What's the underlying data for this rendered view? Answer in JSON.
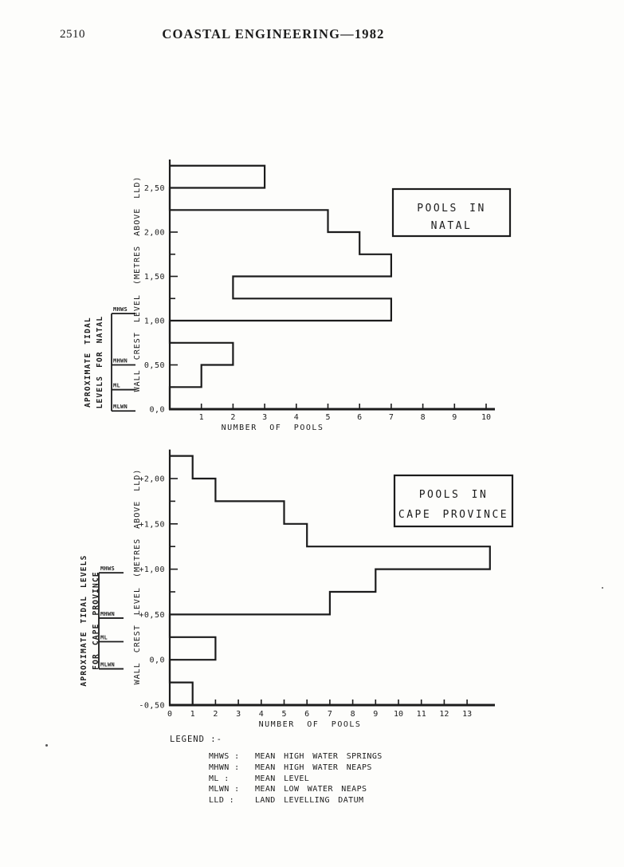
{
  "page": {
    "number": "2510",
    "title": "COASTAL ENGINEERING—1982"
  },
  "colors": {
    "ink": "#1c1c1c",
    "paper": "#fdfdfb"
  },
  "legend": {
    "title": "LEGEND :-",
    "entries": [
      {
        "abbr": "MHWS :",
        "definition": "MEAN HIGH WATER SPRINGS"
      },
      {
        "abbr": "MHWN :",
        "definition": "MEAN HIGH WATER NEAPS"
      },
      {
        "abbr": "ML :",
        "definition": "MEAN LEVEL"
      },
      {
        "abbr": "MLWN :",
        "definition": "MEAN LOW WATER NEAPS"
      },
      {
        "abbr": "LLD :",
        "definition": "LAND LEVELLING DATUM"
      }
    ]
  },
  "chart_data": [
    {
      "type": "bar",
      "orientation": "horizontal-step-histogram",
      "title_lines": [
        "POOLS IN",
        "NATAL"
      ],
      "xlabel": "NUMBER OF POOLS",
      "ylabel": "WALL CREST LEVEL (METRES ABOVE LLD)",
      "xlim": [
        0,
        10.3
      ],
      "x_ticks": [
        1,
        2,
        3,
        4,
        5,
        6,
        7,
        8,
        9,
        10
      ],
      "ylim": [
        0,
        2.82
      ],
      "y_minor_step": 0.25,
      "y_major_ticks": [
        {
          "value": 0.0,
          "label": "0,0"
        },
        {
          "value": 0.5,
          "label": "0,50"
        },
        {
          "value": 1.0,
          "label": "1,00"
        },
        {
          "value": 1.5,
          "label": "1,50"
        },
        {
          "value": 2.0,
          "label": "2,00"
        },
        {
          "value": 2.5,
          "label": "2,50"
        }
      ],
      "bins": [
        {
          "from": 2.5,
          "to": 2.75,
          "count": 3
        },
        {
          "from": 2.25,
          "to": 2.5,
          "count": 0
        },
        {
          "from": 2.0,
          "to": 2.25,
          "count": 5
        },
        {
          "from": 1.75,
          "to": 2.0,
          "count": 6
        },
        {
          "from": 1.5,
          "to": 1.75,
          "count": 7
        },
        {
          "from": 1.25,
          "to": 1.5,
          "count": 2
        },
        {
          "from": 1.0,
          "to": 1.25,
          "count": 7
        },
        {
          "from": 0.75,
          "to": 1.0,
          "count": 0
        },
        {
          "from": 0.5,
          "to": 0.75,
          "count": 2
        },
        {
          "from": 0.25,
          "to": 0.5,
          "count": 1
        },
        {
          "from": 0.0,
          "to": 0.25,
          "count": 0
        }
      ],
      "tidal_scale": {
        "caption_lines": [
          "APROXIMATE TIDAL",
          "LEVELS FOR NATAL"
        ],
        "marks": [
          {
            "label": "MHWS",
            "level": 1.08
          },
          {
            "label": "MHWN",
            "level": 0.5
          },
          {
            "label": "ML",
            "level": 0.22
          },
          {
            "label": "MLWN",
            "level": -0.02
          }
        ]
      }
    },
    {
      "type": "bar",
      "orientation": "horizontal-step-histogram",
      "title_lines": [
        "POOLS IN",
        "CAPE PROVINCE"
      ],
      "xlabel": "NUMBER OF POOLS",
      "ylabel": "WALL CREST LEVEL (METRES ABOVE LLD)",
      "xlim": [
        0,
        14.2
      ],
      "x_ticks": [
        0,
        1,
        2,
        3,
        4,
        5,
        6,
        7,
        8,
        9,
        10,
        11,
        12,
        13
      ],
      "ylim": [
        -0.5,
        2.32
      ],
      "y_minor_step": 0.25,
      "y_major_ticks": [
        {
          "value": -0.5,
          "label": "-0,50"
        },
        {
          "value": 0.0,
          "label": "0,0"
        },
        {
          "value": 0.5,
          "label": "+0,50"
        },
        {
          "value": 1.0,
          "label": "+1,00"
        },
        {
          "value": 1.5,
          "label": "+1,50"
        },
        {
          "value": 2.0,
          "label": "+2,00"
        }
      ],
      "bins": [
        {
          "from": 2.0,
          "to": 2.25,
          "count": 1
        },
        {
          "from": 1.75,
          "to": 2.0,
          "count": 2
        },
        {
          "from": 1.5,
          "to": 1.75,
          "count": 5
        },
        {
          "from": 1.25,
          "to": 1.5,
          "count": 6
        },
        {
          "from": 1.0,
          "to": 1.25,
          "count": 14
        },
        {
          "from": 0.75,
          "to": 1.0,
          "count": 9
        },
        {
          "from": 0.5,
          "to": 0.75,
          "count": 7
        },
        {
          "from": 0.25,
          "to": 0.5,
          "count": 0
        },
        {
          "from": 0.0,
          "to": 0.25,
          "count": 2
        },
        {
          "from": -0.25,
          "to": 0.0,
          "count": 0
        },
        {
          "from": -0.5,
          "to": -0.25,
          "count": 1
        }
      ],
      "tidal_scale": {
        "caption_lines": [
          "APROXIMATE TIDAL LEVELS",
          "FOR CAPE PROVINCE"
        ],
        "marks": [
          {
            "label": "MHWS",
            "level": 0.96
          },
          {
            "label": "MHWN",
            "level": 0.46
          },
          {
            "label": "ML",
            "level": 0.2
          },
          {
            "label": "MLWN",
            "level": -0.1
          }
        ]
      }
    }
  ]
}
